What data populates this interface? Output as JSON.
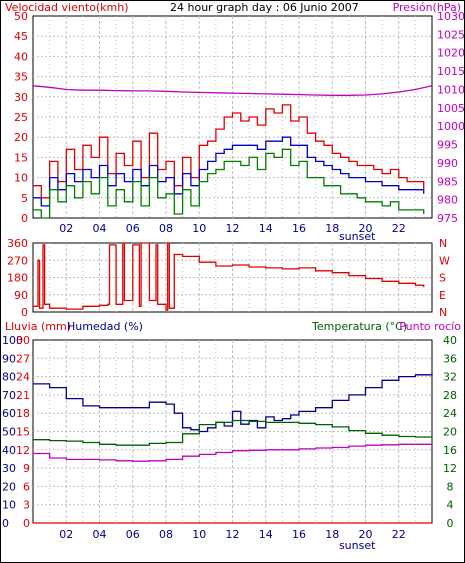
{
  "title": "24 hour graph day : 06 Junio 2007",
  "colors": {
    "wind": "#e00000",
    "gust_avg": "#0000c0",
    "wind_green": "#008000",
    "pressure": "#c000c0",
    "direction": "#e00000",
    "humidity": "#000090",
    "temperature": "#006000",
    "dewpoint": "#c000c0",
    "rain": "#e00000",
    "grid": "#c0c0c0",
    "frame": "#000000"
  },
  "chart_data": [
    {
      "type": "line",
      "name": "wind-pressure",
      "title": "24 hour graph day : 06 Junio 2007",
      "left_label": "Velocidad viento(kmh)",
      "right_label": "Presión(hPa)",
      "xticks": [
        "02",
        "04",
        "06",
        "08",
        "10",
        "12",
        "14",
        "16",
        "18",
        "20",
        "22"
      ],
      "annotation": "sunset",
      "ylim_left": [
        0,
        50
      ],
      "yticks_left": [
        0,
        5,
        10,
        15,
        20,
        25,
        30,
        35,
        40,
        45,
        50
      ],
      "ylim_right": [
        975,
        1030
      ],
      "yticks_right": [
        975,
        980,
        985,
        990,
        995,
        1000,
        1005,
        1010,
        1015,
        1020,
        1025,
        1030
      ],
      "series": [
        {
          "axis": "left",
          "color": "wind",
          "x": [
            0,
            0.5,
            1,
            1.5,
            2,
            2.5,
            3,
            3.5,
            4,
            4.5,
            5,
            5.5,
            6,
            6.5,
            7,
            7.5,
            8,
            8.5,
            9,
            9.5,
            10,
            10.5,
            11,
            11.5,
            12,
            12.5,
            13,
            13.5,
            14,
            14.5,
            15,
            15.5,
            16,
            16.5,
            17,
            17.5,
            18,
            18.5,
            19,
            19.5,
            20,
            20.5,
            21,
            21.5,
            22,
            22.5,
            23,
            23.5
          ],
          "values": [
            8,
            5,
            14,
            9,
            17,
            12,
            18,
            15,
            20,
            11,
            16,
            13,
            19,
            10,
            21,
            12,
            14,
            8,
            15,
            10,
            18,
            19,
            22,
            25,
            26,
            24,
            25,
            23,
            27,
            26,
            28,
            24,
            25,
            21,
            19,
            18,
            16,
            15,
            14,
            13,
            13,
            12,
            11,
            12,
            10,
            9,
            9,
            7
          ]
        },
        {
          "axis": "left",
          "color": "gust_avg",
          "x": [
            0,
            0.5,
            1,
            1.5,
            2,
            2.5,
            3,
            3.5,
            4,
            4.5,
            5,
            5.5,
            6,
            6.5,
            7,
            7.5,
            8,
            8.5,
            9,
            9.5,
            10,
            10.5,
            11,
            11.5,
            12,
            12.5,
            13,
            13.5,
            14,
            14.5,
            15,
            15.5,
            16,
            16.5,
            17,
            17.5,
            18,
            18.5,
            19,
            19.5,
            20,
            20.5,
            21,
            21.5,
            22,
            22.5,
            23,
            23.5
          ],
          "values": [
            5,
            3,
            10,
            7,
            11,
            9,
            12,
            10,
            13,
            8,
            11,
            9,
            12,
            8,
            13,
            9,
            10,
            6,
            11,
            8,
            12,
            14,
            16,
            17,
            18,
            18,
            18,
            17,
            19,
            19,
            20,
            18,
            18,
            15,
            14,
            13,
            12,
            11,
            10,
            10,
            9,
            9,
            8,
            8,
            7,
            7,
            7,
            6
          ]
        },
        {
          "axis": "left",
          "color": "wind_green",
          "x": [
            0,
            0.5,
            1,
            1.5,
            2,
            2.5,
            3,
            3.5,
            4,
            4.5,
            5,
            5.5,
            6,
            6.5,
            7,
            7.5,
            8,
            8.5,
            9,
            9.5,
            10,
            10.5,
            11,
            11.5,
            12,
            12.5,
            13,
            13.5,
            14,
            14.5,
            15,
            15.5,
            16,
            16.5,
            17,
            17.5,
            18,
            18.5,
            19,
            19.5,
            20,
            20.5,
            21,
            21.5,
            22,
            22.5,
            23,
            23.5
          ],
          "values": [
            2,
            0,
            7,
            4,
            8,
            5,
            9,
            6,
            10,
            3,
            7,
            4,
            9,
            3,
            10,
            5,
            6,
            1,
            7,
            3,
            9,
            11,
            12,
            14,
            14,
            13,
            15,
            12,
            16,
            15,
            17,
            13,
            14,
            10,
            10,
            8,
            8,
            6,
            6,
            5,
            4,
            4,
            3,
            4,
            2,
            2,
            2,
            1
          ]
        },
        {
          "axis": "right",
          "color": "pressure",
          "x": [
            0,
            1,
            2,
            3,
            4,
            5,
            6,
            7,
            8,
            9,
            10,
            11,
            12,
            13,
            14,
            15,
            16,
            17,
            18,
            19,
            20,
            21,
            22,
            23,
            24
          ],
          "values": [
            1011,
            1010.6,
            1010,
            1009.8,
            1009.8,
            1009.7,
            1009.6,
            1009.6,
            1009.5,
            1009.3,
            1009.2,
            1009.1,
            1009,
            1008.9,
            1008.8,
            1008.7,
            1008.6,
            1008.5,
            1008.4,
            1008.4,
            1008.5,
            1008.8,
            1009.3,
            1010,
            1011
          ]
        }
      ]
    },
    {
      "type": "line",
      "name": "wind-direction",
      "yticks_left": [
        0,
        90,
        180,
        270,
        360
      ],
      "ylim": [
        0,
        360
      ],
      "compass": [
        "N",
        "W",
        "S",
        "E",
        "N"
      ],
      "series": [
        {
          "color": "direction",
          "x": [
            0,
            0.3,
            0.4,
            0.6,
            0.7,
            1,
            2,
            3,
            4,
            4.5,
            4.6,
            5,
            5.4,
            5.5,
            6,
            6.4,
            6.5,
            7,
            7.4,
            7.5,
            8,
            8.1,
            8.2,
            8.5,
            9,
            10,
            11,
            12,
            13,
            14,
            15,
            16,
            17,
            18,
            19,
            20,
            21,
            22,
            23,
            23.5
          ],
          "values": [
            30,
            270,
            20,
            350,
            40,
            20,
            15,
            30,
            35,
            40,
            350,
            40,
            360,
            60,
            350,
            30,
            360,
            60,
            350,
            40,
            10,
            360,
            20,
            300,
            290,
            260,
            240,
            245,
            235,
            230,
            225,
            230,
            215,
            205,
            190,
            175,
            160,
            150,
            140,
            130
          ]
        }
      ]
    },
    {
      "type": "line",
      "name": "rain-humidity-temperature",
      "left_label_rain": "Lluvia (mm)",
      "left_label_humidity": "Humedad (%)",
      "right_label_temperature": "Temperatura (°C)",
      "right_label_dewpoint": "Punto rocío",
      "yticks_rain": [
        0,
        3,
        6,
        9,
        12,
        15,
        18,
        21,
        24,
        27,
        30
      ],
      "yticks_humidity": [
        0,
        10,
        20,
        30,
        40,
        50,
        60,
        70,
        80,
        90,
        100
      ],
      "yticks_temperature": [
        0,
        4,
        8,
        12,
        16,
        20,
        24,
        28,
        32,
        36,
        40
      ],
      "ylim_humidity": [
        0,
        100
      ],
      "ylim_temperature": [
        0,
        40
      ],
      "series": [
        {
          "axis": "humidity",
          "color": "humidity",
          "x": [
            0,
            1,
            2,
            3,
            4,
            5,
            6,
            7,
            8,
            8.5,
            9,
            9.5,
            10,
            10.5,
            11,
            11.5,
            12,
            12.5,
            13,
            13.5,
            14,
            14.5,
            15,
            15.5,
            16,
            17,
            18,
            19,
            20,
            21,
            22,
            23,
            24
          ],
          "values": [
            76,
            74,
            68,
            64,
            63,
            63,
            63,
            66,
            65,
            60,
            52,
            51,
            50,
            52,
            55,
            53,
            61,
            54,
            56,
            52,
            58,
            56,
            57,
            59,
            61,
            63,
            67,
            70,
            74,
            78,
            80,
            81,
            82
          ]
        },
        {
          "axis": "temperature",
          "color": "temperature",
          "x": [
            0,
            1,
            2,
            3,
            4,
            5,
            6,
            7,
            8,
            9,
            10,
            11,
            12,
            13,
            14,
            15,
            16,
            17,
            18,
            19,
            20,
            21,
            22,
            23,
            24
          ],
          "values": [
            18.2,
            18.0,
            17.9,
            17.6,
            17.2,
            17.0,
            17.0,
            17.4,
            17.6,
            19.5,
            21.5,
            22.0,
            22.4,
            22.2,
            22.0,
            22.0,
            21.8,
            21.5,
            21.0,
            20.2,
            19.6,
            19.2,
            18.9,
            18.8,
            18.8
          ]
        },
        {
          "axis": "temperature",
          "color": "dewpoint",
          "x": [
            0,
            1,
            2,
            3,
            4,
            5,
            6,
            7,
            8,
            9,
            10,
            11,
            12,
            13,
            14,
            15,
            16,
            17,
            18,
            19,
            20,
            21,
            22,
            23,
            24
          ],
          "values": [
            15.2,
            14.2,
            13.9,
            13.9,
            13.8,
            13.6,
            13.5,
            13.6,
            13.9,
            14.6,
            15.0,
            15.4,
            15.8,
            15.9,
            16.0,
            16.0,
            16.2,
            16.4,
            16.5,
            16.8,
            17.0,
            17.1,
            17.2,
            17.2,
            17.2
          ]
        },
        {
          "axis": "rain",
          "color": "rain",
          "x": [
            0,
            24
          ],
          "values": [
            0,
            0
          ]
        }
      ]
    }
  ]
}
